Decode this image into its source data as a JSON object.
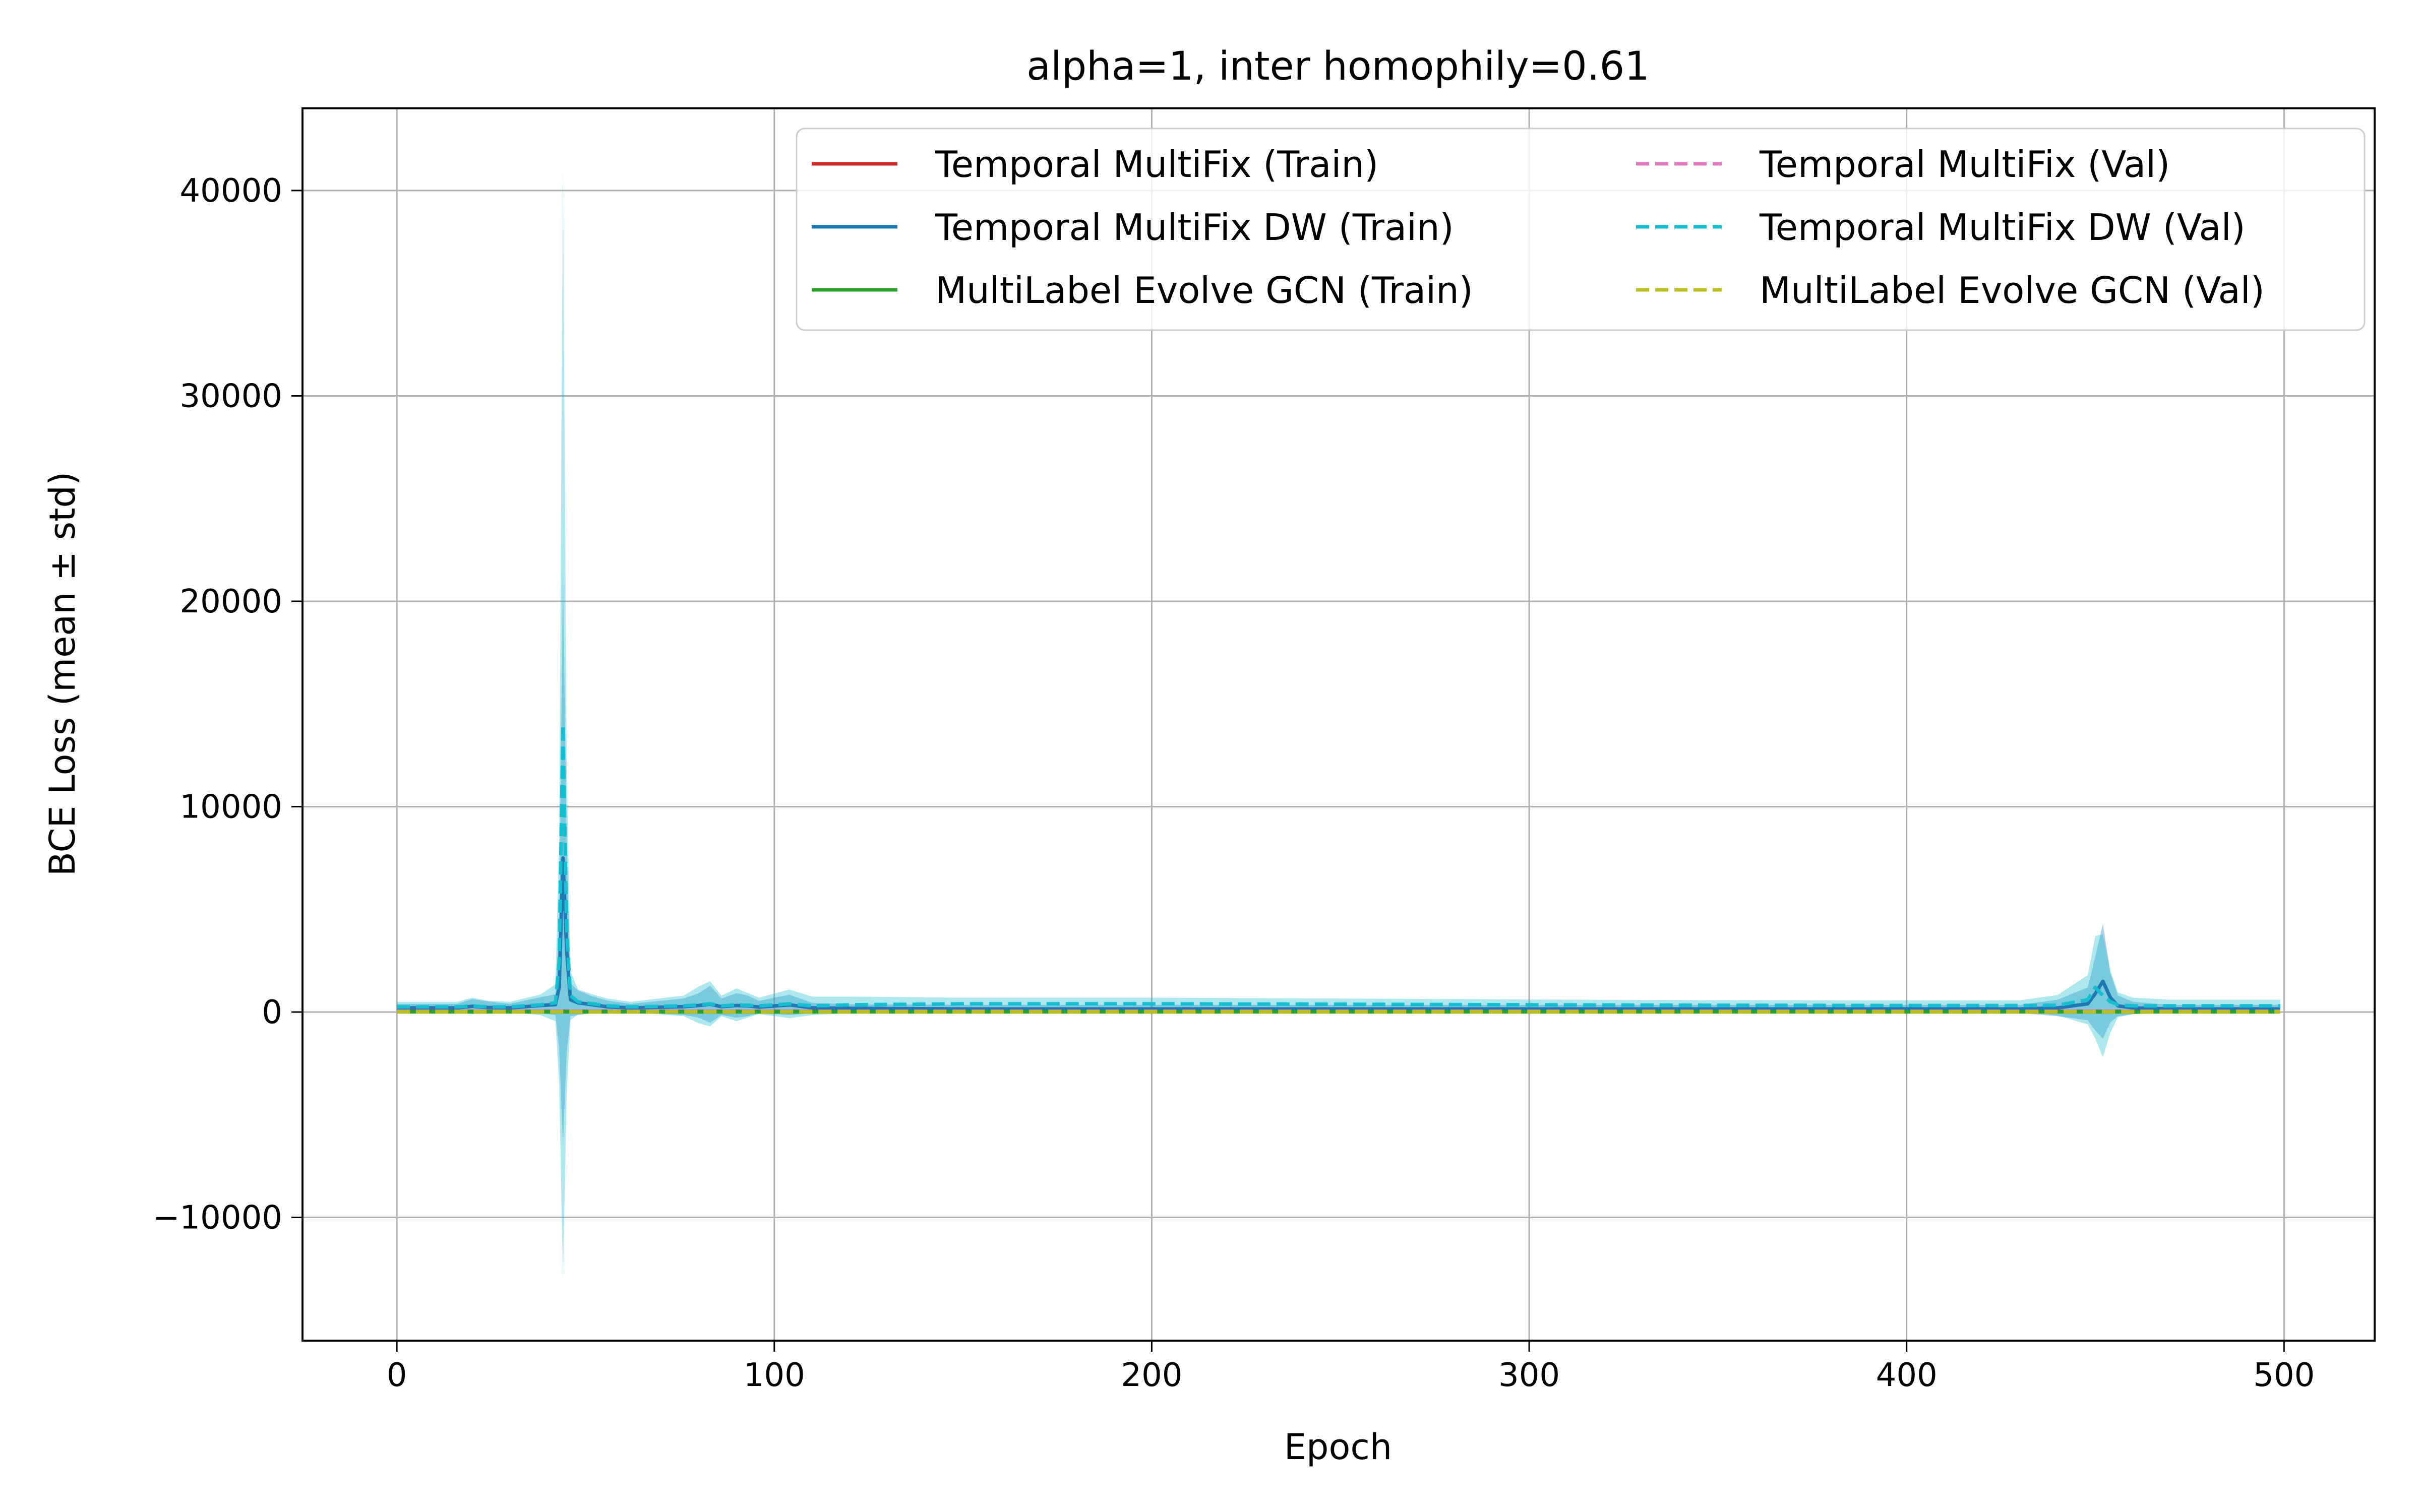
{
  "chart_data": {
    "type": "line",
    "title": "alpha=1, inter homophily=0.61",
    "xlabel": "Epoch",
    "ylabel": "BCE Loss (mean ± std)",
    "xlim": [
      -25,
      524
    ],
    "ylim": [
      -16000,
      44000
    ],
    "xticks": [
      0,
      100,
      200,
      300,
      400,
      500
    ],
    "xtick_labels": [
      "0",
      "100",
      "200",
      "300",
      "400",
      "500"
    ],
    "yticks": [
      -10000,
      0,
      10000,
      20000,
      30000,
      40000
    ],
    "ytick_labels": [
      "−10000",
      "0",
      "10000",
      "20000",
      "30000",
      "40000"
    ],
    "grid": true,
    "legend": {
      "placement": "top-right",
      "columns": 2
    },
    "series": [
      {
        "name": "Temporal MultiFix (Train)",
        "color": "#d62728",
        "style": "solid",
        "x": [
          0,
          499
        ],
        "values": [
          30,
          30
        ],
        "std": [
          5,
          5
        ]
      },
      {
        "name": "Temporal MultiFix DW (Train)",
        "color": "#1f77b4",
        "style": "solid",
        "x": [
          0,
          16,
          20,
          24,
          30,
          38,
          42,
          43,
          44,
          45,
          46,
          48,
          52,
          56,
          62,
          76,
          80,
          83,
          86,
          90,
          93,
          96,
          104,
          110,
          120,
          150,
          200,
          250,
          300,
          350,
          400,
          430,
          440,
          448,
          450,
          452,
          454,
          456,
          460,
          470,
          480,
          499
        ],
        "values": [
          200,
          200,
          280,
          220,
          200,
          320,
          360,
          1200,
          7500,
          3000,
          600,
          450,
          350,
          250,
          200,
          260,
          320,
          380,
          260,
          320,
          300,
          240,
          350,
          200,
          180,
          150,
          150,
          150,
          150,
          150,
          150,
          150,
          200,
          400,
          900,
          1500,
          700,
          300,
          200,
          150,
          150,
          150
        ],
        "std": [
          200,
          200,
          350,
          300,
          200,
          400,
          500,
          3000,
          14000,
          5000,
          800,
          600,
          400,
          300,
          200,
          400,
          600,
          900,
          400,
          600,
          500,
          300,
          500,
          250,
          200,
          200,
          200,
          200,
          200,
          200,
          200,
          200,
          400,
          800,
          1800,
          2800,
          1200,
          500,
          300,
          200,
          200,
          200
        ]
      },
      {
        "name": "MultiLabel Evolve GCN (Train)",
        "color": "#2ca02c",
        "style": "solid",
        "x": [
          0,
          499
        ],
        "values": [
          10,
          10
        ],
        "std": [
          5,
          5
        ]
      },
      {
        "name": "Temporal MultiFix (Val)",
        "color": "#e377c2",
        "style": "dashed",
        "x": [
          0,
          499
        ],
        "values": [
          40,
          40
        ],
        "std": [
          10,
          10
        ]
      },
      {
        "name": "Temporal MultiFix DW (Val)",
        "color": "#17becf",
        "style": "dashed",
        "x": [
          0,
          16,
          20,
          24,
          30,
          38,
          42,
          43,
          44,
          45,
          46,
          48,
          52,
          56,
          62,
          76,
          80,
          83,
          86,
          90,
          93,
          96,
          104,
          110,
          120,
          150,
          200,
          250,
          300,
          350,
          400,
          430,
          440,
          448,
          450,
          452,
          454,
          456,
          460,
          470,
          480,
          499
        ],
        "values": [
          250,
          250,
          300,
          250,
          250,
          350,
          450,
          2500,
          14000,
          4000,
          800,
          500,
          400,
          300,
          250,
          300,
          350,
          400,
          300,
          350,
          330,
          300,
          400,
          300,
          350,
          400,
          400,
          380,
          350,
          330,
          320,
          320,
          330,
          600,
          1200,
          800,
          500,
          350,
          300,
          300,
          300,
          300
        ],
        "std": [
          250,
          250,
          400,
          300,
          250,
          500,
          900,
          6000,
          27000,
          8000,
          1200,
          600,
          450,
          350,
          250,
          500,
          900,
          1100,
          500,
          800,
          600,
          400,
          700,
          450,
          400,
          300,
          300,
          280,
          260,
          250,
          250,
          250,
          500,
          1200,
          2500,
          3000,
          1500,
          600,
          400,
          300,
          300,
          300
        ]
      },
      {
        "name": "MultiLabel Evolve GCN (Val)",
        "color": "#bcbd22",
        "style": "dashed",
        "x": [
          0,
          499
        ],
        "values": [
          15,
          15
        ],
        "std": [
          5,
          5
        ]
      }
    ]
  }
}
